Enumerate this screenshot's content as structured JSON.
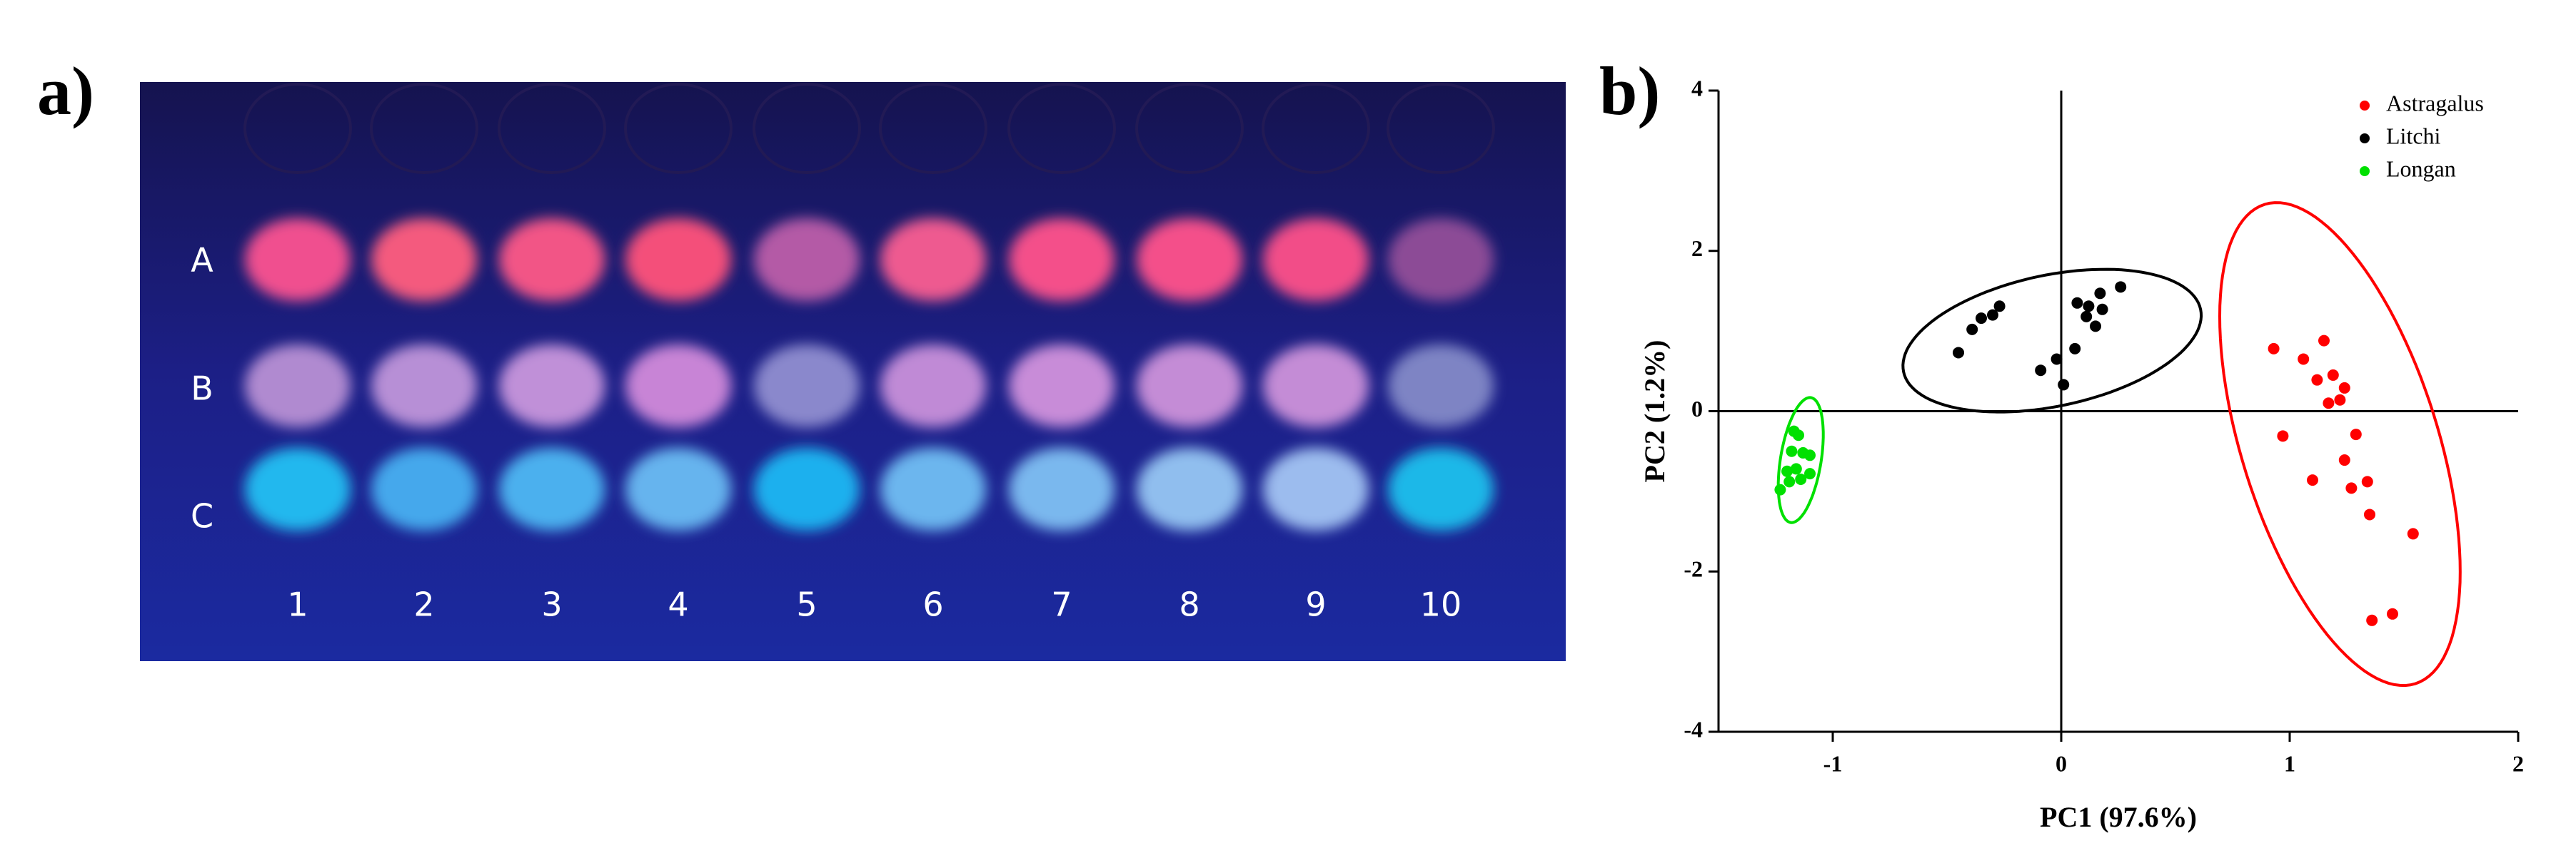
{
  "panel_a": {
    "label": "a)",
    "rows": [
      "A",
      "B",
      "C"
    ],
    "columns": [
      "1",
      "2",
      "3",
      "4",
      "5",
      "6",
      "7",
      "8",
      "9",
      "10"
    ]
  },
  "chart_data": {
    "type": "scatter",
    "panel_label": "b)",
    "xlabel": "PC1 (97.6%)",
    "ylabel": "PC2 (1.2%)",
    "xlim": [
      -1.5,
      2
    ],
    "ylim": [
      -4,
      4
    ],
    "xticks": [
      -1,
      0,
      1,
      2
    ],
    "yticks": [
      -4,
      -2,
      0,
      2,
      4
    ],
    "legend": "upper right",
    "series": [
      {
        "name": "Astragalus",
        "color": "#ff0000",
        "x": [
          0.93,
          1.06,
          1.15,
          1.12,
          1.19,
          1.24,
          1.22,
          1.17,
          0.97,
          1.29,
          1.24,
          1.1,
          1.27,
          1.34,
          1.35,
          1.54,
          1.36,
          1.45
        ],
        "y": [
          0.78,
          0.65,
          0.88,
          0.39,
          0.45,
          0.29,
          0.14,
          0.1,
          -0.31,
          -0.29,
          -0.61,
          -0.86,
          -0.96,
          -0.88,
          -1.29,
          -1.53,
          -2.61,
          -2.53
        ],
        "ellipse": {
          "center": [
            1.22,
            -0.41
          ],
          "axes": [
            [
              0.33,
              -2.99
            ],
            [
              0.41,
              0.37
            ]
          ]
        }
      },
      {
        "name": "Litchi",
        "color": "#000000",
        "x": [
          -0.45,
          -0.39,
          -0.35,
          -0.3,
          -0.27,
          -0.09,
          -0.02,
          0.01,
          0.06,
          0.07,
          0.12,
          0.11,
          0.15,
          0.17,
          0.18,
          0.26
        ],
        "y": [
          0.73,
          1.02,
          1.16,
          1.2,
          1.31,
          0.51,
          0.65,
          0.33,
          0.78,
          1.35,
          1.31,
          1.18,
          1.06,
          1.47,
          1.27,
          1.55
        ],
        "ellipse": {
          "center": [
            -0.04,
            0.88
          ],
          "axes": [
            [
              0.65,
              0.39
            ],
            [
              0.06,
              -0.8
            ]
          ]
        }
      },
      {
        "name": "Longan",
        "color": "#00e000",
        "x": [
          -1.17,
          -1.15,
          -1.18,
          -1.13,
          -1.2,
          -1.16,
          -1.1,
          -1.14,
          -1.19,
          -1.23,
          -1.1
        ],
        "y": [
          -0.25,
          -0.3,
          -0.5,
          -0.52,
          -0.75,
          -0.72,
          -0.55,
          -0.85,
          -0.88,
          -0.98,
          -0.78
        ],
        "ellipse": {
          "center": [
            -1.14,
            -0.61
          ],
          "axes": [
            [
              0.04,
              0.78
            ],
            [
              0.09,
              0
            ]
          ]
        }
      }
    ]
  }
}
